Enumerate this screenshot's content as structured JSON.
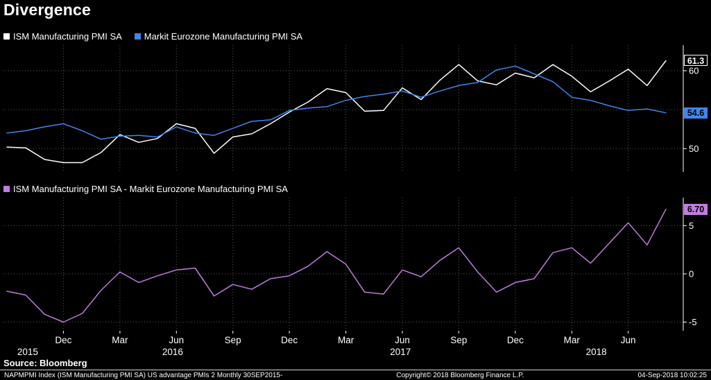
{
  "title": "Divergence",
  "source_label": "Source: Bloomberg",
  "footer": {
    "left": "NAPMPMI Index (ISM Manufacturing PMI SA) US advantage PMIs 2  Monthly 30SEP2015-",
    "center": "Copyright© 2018 Bloomberg Finance L.P.",
    "right": "04-Sep-2018 10:02:25"
  },
  "colors": {
    "background": "#000000",
    "text": "#ffffff",
    "grid": "#5a5a5a",
    "axis": "#ffffff"
  },
  "xaxis": {
    "month_tick_labels": [
      "Dec",
      "Mar",
      "Jun",
      "Sep",
      "Dec",
      "Mar",
      "Jun",
      "Sep",
      "Dec",
      "Mar",
      "Jun"
    ],
    "month_tick_indices": [
      3,
      6,
      9,
      12,
      15,
      18,
      21,
      24,
      27,
      30,
      33
    ],
    "year_labels": [
      {
        "label": "2015",
        "index": 1.1
      },
      {
        "label": "2016",
        "index": 8.8
      },
      {
        "label": "2017",
        "index": 20.9
      },
      {
        "label": "2018",
        "index": 31.3
      }
    ]
  },
  "chart_data": [
    {
      "type": "line",
      "panel": "top",
      "x": [
        "Sep 2015",
        "Oct 2015",
        "Nov 2015",
        "Dec 2015",
        "Jan 2016",
        "Feb 2016",
        "Mar 2016",
        "Apr 2016",
        "May 2016",
        "Jun 2016",
        "Jul 2016",
        "Aug 2016",
        "Sep 2016",
        "Oct 2016",
        "Nov 2016",
        "Dec 2016",
        "Jan 2017",
        "Feb 2017",
        "Mar 2017",
        "Apr 2017",
        "May 2017",
        "Jun 2017",
        "Jul 2017",
        "Aug 2017",
        "Sep 2017",
        "Oct 2017",
        "Nov 2017",
        "Dec 2017",
        "Jan 2018",
        "Feb 2018",
        "Mar 2018",
        "Apr 2018",
        "May 2018",
        "Jun 2018",
        "Jul 2018",
        "Aug 2018"
      ],
      "series": [
        {
          "name": "ISM Manufacturing PMI SA",
          "color": "#ffffff",
          "values": [
            50.2,
            50.1,
            48.6,
            48.2,
            48.2,
            49.5,
            51.8,
            50.8,
            51.3,
            53.2,
            52.6,
            49.4,
            51.5,
            51.9,
            53.2,
            54.7,
            56.0,
            57.7,
            57.2,
            54.8,
            54.9,
            57.8,
            56.3,
            58.8,
            60.8,
            58.7,
            58.2,
            59.7,
            59.1,
            60.8,
            59.3,
            57.3,
            58.7,
            60.2,
            58.1,
            61.3
          ]
        },
        {
          "name": "Markit Eurozone Manufacturing PMI SA",
          "color": "#3f86f0",
          "values": [
            52.0,
            52.3,
            52.8,
            53.2,
            52.3,
            51.2,
            51.6,
            51.7,
            51.5,
            52.8,
            52.0,
            51.7,
            52.6,
            53.5,
            53.7,
            54.9,
            55.2,
            55.4,
            56.2,
            56.7,
            57.0,
            57.4,
            56.6,
            57.4,
            58.1,
            58.5,
            60.1,
            60.6,
            59.6,
            58.6,
            56.6,
            56.2,
            55.5,
            54.9,
            55.1,
            54.6
          ]
        }
      ],
      "ylim": [
        47.0,
        63.3
      ],
      "yticks": [
        50,
        60
      ],
      "grid_yticks": [
        50,
        55,
        60
      ],
      "badges": [
        {
          "text": "61.3",
          "value": 61.3,
          "bg": "#000000",
          "text_color": "#ffffff",
          "border": "#ffffff"
        },
        {
          "text": "54.6",
          "value": 54.6,
          "bg": "#3f86f0",
          "text_color": "#000000"
        }
      ]
    },
    {
      "type": "line",
      "panel": "bottom",
      "x": [
        "Sep 2015",
        "Oct 2015",
        "Nov 2015",
        "Dec 2015",
        "Jan 2016",
        "Feb 2016",
        "Mar 2016",
        "Apr 2016",
        "May 2016",
        "Jun 2016",
        "Jul 2016",
        "Aug 2016",
        "Sep 2016",
        "Oct 2016",
        "Nov 2016",
        "Dec 2016",
        "Jan 2017",
        "Feb 2017",
        "Mar 2017",
        "Apr 2017",
        "May 2017",
        "Jun 2017",
        "Jul 2017",
        "Aug 2017",
        "Sep 2017",
        "Oct 2017",
        "Nov 2017",
        "Dec 2017",
        "Jan 2018",
        "Feb 2018",
        "Mar 2018",
        "Apr 2018",
        "May 2018",
        "Jun 2018",
        "Jul 2018",
        "Aug 2018"
      ],
      "series": [
        {
          "name": "ISM Manufacturing PMI SA - Markit Eurozone Manufacturing PMI SA",
          "color": "#bf7de0",
          "values": [
            -1.8,
            -2.2,
            -4.2,
            -5.0,
            -4.1,
            -1.7,
            0.2,
            -0.9,
            -0.2,
            0.4,
            0.6,
            -2.3,
            -1.1,
            -1.6,
            -0.5,
            -0.2,
            0.8,
            2.3,
            1.0,
            -1.9,
            -2.1,
            0.4,
            -0.3,
            1.4,
            2.7,
            0.2,
            -1.9,
            -0.9,
            -0.5,
            2.2,
            2.7,
            1.1,
            3.2,
            5.3,
            3.0,
            6.7
          ]
        }
      ],
      "ylim": [
        -5.9,
        7.9
      ],
      "yticks": [
        -5,
        0,
        5
      ],
      "badges": [
        {
          "text": "6.70",
          "value": 6.7,
          "bg": "#bf7de0",
          "text_color": "#000000"
        }
      ]
    }
  ]
}
